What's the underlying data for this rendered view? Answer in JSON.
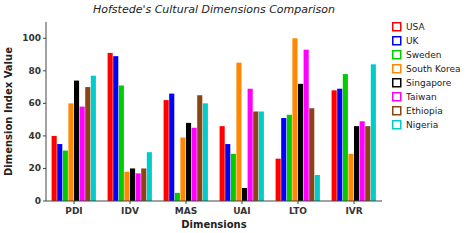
{
  "chart_data": {
    "type": "bar",
    "title": "Hofstede's Cultural Dimensions Comparison",
    "x_label": "Dimensions",
    "y_label": "Dimension Index Value",
    "categories": [
      "PDI",
      "IDV",
      "MAS",
      "UAI",
      "LTO",
      "IVR"
    ],
    "series": [
      {
        "name": "USA",
        "color": "#ff0000",
        "values": [
          40,
          91,
          62,
          46,
          26,
          68
        ]
      },
      {
        "name": "UK",
        "color": "#0000ff",
        "values": [
          35,
          89,
          66,
          35,
          51,
          69
        ]
      },
      {
        "name": "Sweden",
        "color": "#00cc00",
        "values": [
          31,
          71,
          5,
          29,
          53,
          78
        ]
      },
      {
        "name": "South Korea",
        "color": "#ff8800",
        "values": [
          60,
          18,
          39,
          85,
          100,
          29
        ]
      },
      {
        "name": "Singapore",
        "color": "#000000",
        "values": [
          74,
          20,
          48,
          8,
          72,
          46
        ]
      },
      {
        "name": "Taiwan",
        "color": "#ff00ff",
        "values": [
          58,
          17,
          45,
          69,
          93,
          49
        ]
      },
      {
        "name": "Ethiopia",
        "color": "#8B4513",
        "values": [
          70,
          20,
          65,
          55,
          57,
          46
        ]
      },
      {
        "name": "Nigeria",
        "color": "#00cccc",
        "values": [
          77,
          30,
          60,
          55,
          16,
          84
        ]
      }
    ],
    "ylim": [
      0,
      110
    ],
    "yticks": [
      0,
      20,
      40,
      60,
      80,
      100
    ],
    "grid": false,
    "legend": "right"
  }
}
